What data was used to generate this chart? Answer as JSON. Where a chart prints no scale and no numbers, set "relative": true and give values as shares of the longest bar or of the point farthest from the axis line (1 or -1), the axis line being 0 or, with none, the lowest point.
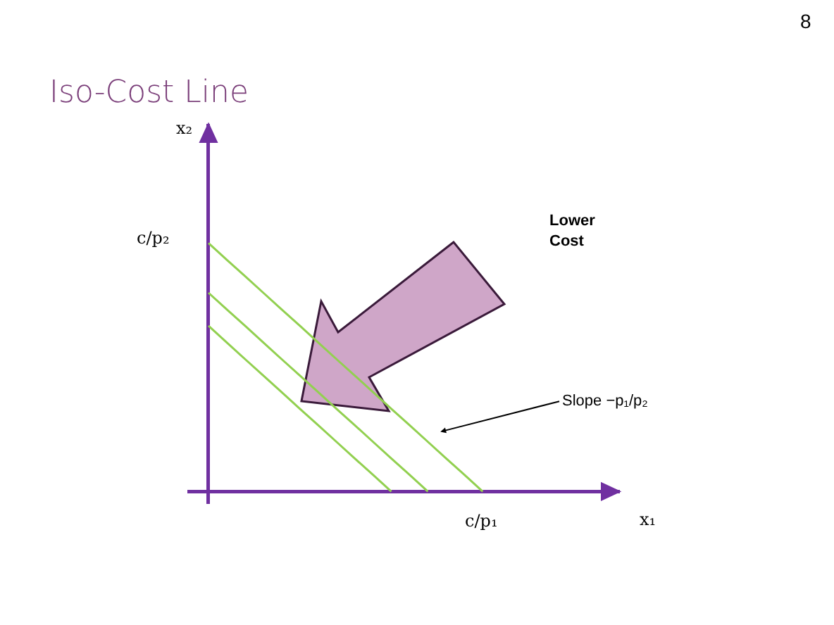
{
  "chart_data": {
    "type": "line",
    "title": "Iso-Cost Line",
    "relative": true,
    "grid": false,
    "tick_labels": false,
    "marker": "none",
    "line_style": "solid",
    "categories": [
      null,
      null,
      null,
      null,
      null,
      null,
      null,
      null,
      null,
      null,
      null,
      null,
      null,
      null,
      null,
      null
    ],
    "series": [
      {
        "values": [
          1,
          0.933,
          0.867,
          0.8,
          0.733,
          0.667,
          0.6,
          0.533,
          0.467,
          0.4,
          0.333,
          0.267,
          0.2,
          0.133,
          0.067,
          0
        ],
        "color": "#92d050"
      },
      {
        "values": [
          0.8,
          0.733,
          0.667,
          0.6,
          0.533,
          0.467,
          0.4,
          0.333,
          0.267,
          0.2,
          0.133,
          0.067,
          0,
          null,
          null,
          null
        ],
        "color": "#92d050"
      },
      {
        "values": [
          0.667,
          0.6,
          0.533,
          0.467,
          0.4,
          0.333,
          0.267,
          0.2,
          0.133,
          0.067,
          0,
          null,
          null,
          null,
          null,
          null
        ],
        "color": "#92d050"
      }
    ],
    "annotations": [
      "8",
      "Lower Cost",
      "Slope −p₁/p₂",
      "c/p₂",
      "c/p₁",
      "x₁",
      "x₂"
    ]
  }
}
